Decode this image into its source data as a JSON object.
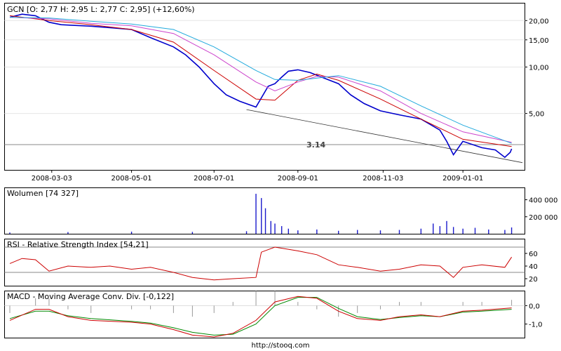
{
  "footer_url": "http://stooq.com",
  "colors": {
    "price": "#0000cc",
    "ma_red": "#cc0000",
    "ma_magenta": "#cc44cc",
    "ma_cyan": "#22aadd",
    "volume": "#1a1acc",
    "rsi": "#cc0000",
    "macd_red": "#cc0000",
    "macd_green": "#008800",
    "hist": "#999999",
    "level": "#888888"
  },
  "chart_data": [
    {
      "type": "line",
      "panel": "price",
      "title": "GCN [O: 2,77  H: 2,95  L: 2,77  C: 2,95] (+12,60%)",
      "scale": "log",
      "ylim": [
        2.2,
        25
      ],
      "y_ticks": [
        "20,00",
        "15,00",
        "10,00",
        "5,00"
      ],
      "y_tick_values": [
        20,
        15,
        10,
        5
      ],
      "x_ticks": [
        "2008-03-03",
        "2008-05-01",
        "2008-07-01",
        "2008-09-01",
        "2008-11-03",
        "2009-01-01"
      ],
      "xlim": [
        "2008-02-01",
        "2009-02-14"
      ],
      "annotation": {
        "text": "3.14",
        "value": 3.14
      },
      "series": [
        {
          "key": "close",
          "x": [
            "2008-02-01",
            "2008-02-10",
            "2008-02-20",
            "2008-03-01",
            "2008-03-10",
            "2008-03-20",
            "2008-04-01",
            "2008-04-15",
            "2008-05-01",
            "2008-05-15",
            "2008-06-01",
            "2008-06-10",
            "2008-06-20",
            "2008-07-01",
            "2008-07-10",
            "2008-07-20",
            "2008-08-01",
            "2008-08-10",
            "2008-08-15",
            "2008-08-20",
            "2008-08-25",
            "2008-09-01",
            "2008-09-10",
            "2008-09-20",
            "2008-10-01",
            "2008-10-10",
            "2008-10-20",
            "2008-11-01",
            "2008-11-15",
            "2008-12-01",
            "2008-12-15",
            "2008-12-20",
            "2008-12-25",
            "2009-01-01",
            "2009-01-15",
            "2009-01-25",
            "2009-02-01",
            "2009-02-05",
            "2009-02-06"
          ],
          "y": [
            21.0,
            22.0,
            21.5,
            19.5,
            18.8,
            18.6,
            18.4,
            18.0,
            17.5,
            15.5,
            13.5,
            12.0,
            10.0,
            7.8,
            6.6,
            6.0,
            5.5,
            7.5,
            7.8,
            8.6,
            9.4,
            9.6,
            9.2,
            8.5,
            7.8,
            6.6,
            5.8,
            5.2,
            4.9,
            4.6,
            3.9,
            3.3,
            2.7,
            3.3,
            3.0,
            2.9,
            2.6,
            2.8,
            2.95
          ]
        },
        {
          "key": "ma_short",
          "x": [
            "2008-02-01",
            "2008-03-01",
            "2008-04-01",
            "2008-05-01",
            "2008-06-01",
            "2008-07-01",
            "2008-08-01",
            "2008-08-15",
            "2008-09-01",
            "2008-09-15",
            "2008-10-01",
            "2008-11-01",
            "2008-12-01",
            "2009-01-01",
            "2009-02-01",
            "2009-02-06"
          ],
          "y": [
            21.5,
            20.0,
            18.8,
            17.5,
            14.5,
            9.5,
            6.2,
            6.1,
            8.2,
            9.0,
            8.2,
            6.2,
            4.6,
            3.4,
            3.1,
            3.05
          ]
        },
        {
          "key": "ma_mid",
          "x": [
            "2008-02-01",
            "2008-03-01",
            "2008-04-01",
            "2008-05-01",
            "2008-06-01",
            "2008-07-01",
            "2008-08-01",
            "2008-08-15",
            "2008-09-01",
            "2008-09-15",
            "2008-10-01",
            "2008-11-01",
            "2008-12-01",
            "2009-01-01",
            "2009-02-06"
          ],
          "y": [
            21.0,
            20.5,
            19.2,
            18.5,
            16.5,
            12.0,
            8.0,
            7.0,
            8.0,
            8.7,
            8.6,
            7.0,
            5.0,
            3.8,
            3.25
          ]
        },
        {
          "key": "ma_long",
          "x": [
            "2008-02-01",
            "2008-03-01",
            "2008-04-01",
            "2008-05-01",
            "2008-06-01",
            "2008-07-01",
            "2008-08-01",
            "2008-08-15",
            "2008-09-01",
            "2008-10-01",
            "2008-11-01",
            "2008-12-01",
            "2009-01-01",
            "2009-02-06"
          ],
          "y": [
            21.0,
            20.8,
            19.8,
            19.0,
            17.5,
            13.5,
            9.5,
            8.3,
            8.2,
            8.8,
            7.5,
            5.6,
            4.2,
            3.2
          ]
        },
        {
          "key": "trend",
          "x": [
            "2008-07-25",
            "2009-02-14"
          ],
          "y": [
            5.3,
            2.4
          ]
        }
      ]
    },
    {
      "type": "bar",
      "panel": "volume",
      "title": "Wolumen [74 327]",
      "y_ticks": [
        "400 000",
        "200 000"
      ],
      "y_tick_values": [
        400000,
        200000
      ],
      "ylim": [
        0,
        520000
      ],
      "x": [
        "2008-02-01",
        "2008-03-15",
        "2008-05-01",
        "2008-06-15",
        "2008-07-25",
        "2008-08-01",
        "2008-08-05",
        "2008-08-08",
        "2008-08-12",
        "2008-08-15",
        "2008-08-20",
        "2008-08-25",
        "2008-09-01",
        "2008-09-15",
        "2008-10-01",
        "2008-10-15",
        "2008-11-01",
        "2008-11-15",
        "2008-12-01",
        "2008-12-10",
        "2008-12-15",
        "2008-12-20",
        "2008-12-25",
        "2009-01-01",
        "2009-01-10",
        "2009-01-20",
        "2009-02-01",
        "2009-02-06"
      ],
      "values": [
        15000,
        20000,
        25000,
        22000,
        30000,
        470000,
        420000,
        300000,
        150000,
        120000,
        90000,
        60000,
        40000,
        50000,
        35000,
        45000,
        40000,
        45000,
        60000,
        120000,
        90000,
        150000,
        80000,
        60000,
        70000,
        50000,
        45000,
        74327
      ]
    },
    {
      "type": "line",
      "panel": "rsi",
      "title": "RSI - Relative Strength Index [54,21]",
      "y_ticks": [
        "60",
        "40",
        "20"
      ],
      "y_tick_values": [
        60,
        40,
        20
      ],
      "ylim": [
        10,
        80
      ],
      "levels": [
        70,
        30
      ],
      "x": [
        "2008-02-01",
        "2008-02-10",
        "2008-02-20",
        "2008-03-01",
        "2008-03-15",
        "2008-04-01",
        "2008-04-15",
        "2008-05-01",
        "2008-05-15",
        "2008-06-01",
        "2008-06-15",
        "2008-07-01",
        "2008-07-15",
        "2008-08-01",
        "2008-08-05",
        "2008-08-15",
        "2008-09-01",
        "2008-09-15",
        "2008-10-01",
        "2008-10-15",
        "2008-11-01",
        "2008-11-15",
        "2008-12-01",
        "2008-12-15",
        "2008-12-25",
        "2009-01-01",
        "2009-01-15",
        "2009-02-01",
        "2009-02-06"
      ],
      "values": [
        44,
        52,
        50,
        32,
        40,
        38,
        40,
        35,
        38,
        30,
        22,
        18,
        20,
        22,
        62,
        70,
        64,
        58,
        42,
        38,
        32,
        35,
        42,
        40,
        22,
        38,
        42,
        38,
        54.21
      ]
    },
    {
      "type": "line",
      "panel": "macd",
      "title": "MACD - Moving Average Conv. Div. [-0,122]",
      "y_ticks": [
        "0,0",
        "-1,0"
      ],
      "y_tick_values": [
        0,
        -1
      ],
      "ylim": [
        -1.7,
        0.7
      ],
      "x": [
        "2008-02-01",
        "2008-02-20",
        "2008-03-01",
        "2008-03-15",
        "2008-04-01",
        "2008-05-01",
        "2008-05-15",
        "2008-06-01",
        "2008-06-15",
        "2008-07-01",
        "2008-07-15",
        "2008-08-01",
        "2008-08-15",
        "2008-09-01",
        "2008-09-15",
        "2008-10-01",
        "2008-10-15",
        "2008-11-01",
        "2008-11-15",
        "2008-12-01",
        "2008-12-15",
        "2009-01-01",
        "2009-01-15",
        "2009-02-06"
      ],
      "series": [
        {
          "name": "",
          "key": "macd",
          "values": [
            -0.8,
            -0.2,
            -0.2,
            -0.6,
            -0.8,
            -0.9,
            -1.0,
            -1.3,
            -1.6,
            -1.7,
            -1.5,
            -0.8,
            0.2,
            0.5,
            0.4,
            -0.3,
            -0.7,
            -0.8,
            -0.6,
            -0.5,
            -0.6,
            -0.3,
            -0.25,
            -0.122
          ]
        },
        {
          "name": "",
          "key": "signal",
          "values": [
            -0.7,
            -0.3,
            -0.3,
            -0.55,
            -0.7,
            -0.85,
            -0.95,
            -1.2,
            -1.45,
            -1.6,
            -1.55,
            -1.0,
            0.0,
            0.45,
            0.45,
            -0.15,
            -0.6,
            -0.75,
            -0.65,
            -0.55,
            -0.6,
            -0.35,
            -0.3,
            -0.2
          ]
        }
      ]
    }
  ]
}
